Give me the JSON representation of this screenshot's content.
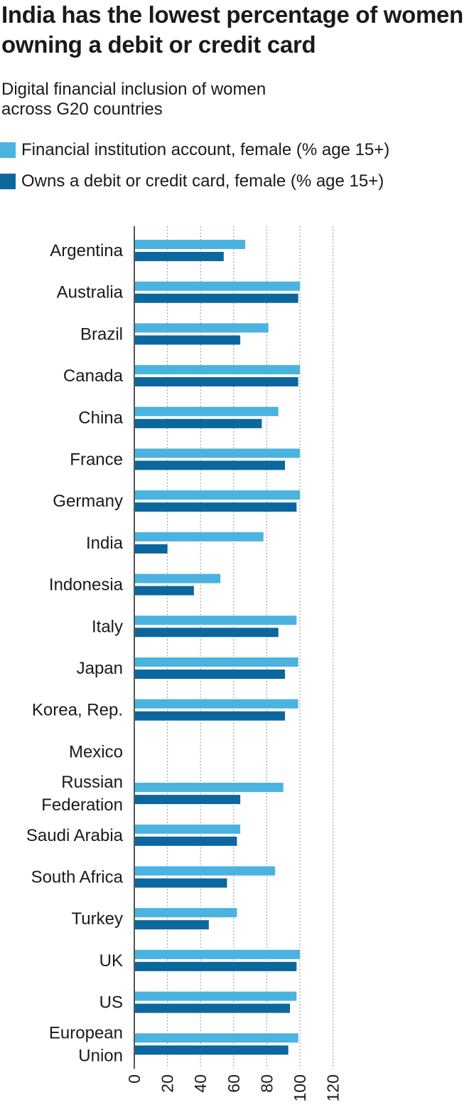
{
  "title": "India has the lowest percentage of women owning a debit or credit card",
  "subtitle": "Digital financial inclusion of women across G20 countries",
  "colors": {
    "account": "#4ab3df",
    "card": "#0b679e",
    "axis": "#555555",
    "grid": "#888888"
  },
  "chart_data": {
    "type": "bar",
    "orientation": "horizontal",
    "title": "India has the lowest percentage of women owning a debit or credit card",
    "subtitle": "Digital financial inclusion of women across G20 countries",
    "xlim": [
      0,
      120
    ],
    "ticks": [
      0,
      20,
      40,
      60,
      80,
      100,
      120
    ],
    "grid": true,
    "legend_position": "top-left",
    "categories": [
      [
        "Argentina"
      ],
      [
        "Australia"
      ],
      [
        "Brazil"
      ],
      [
        "Canada"
      ],
      [
        "China"
      ],
      [
        "France"
      ],
      [
        "Germany"
      ],
      [
        "India"
      ],
      [
        "Indonesia"
      ],
      [
        "Italy"
      ],
      [
        "Japan"
      ],
      [
        "Korea, Rep."
      ],
      [
        "Mexico"
      ],
      [
        "Russian",
        "Federation"
      ],
      [
        "Saudi Arabia"
      ],
      [
        "South Africa"
      ],
      [
        "Turkey"
      ],
      [
        "UK"
      ],
      [
        "US"
      ],
      [
        "European",
        "Union"
      ]
    ],
    "series": [
      {
        "name": "Financial institution account, female (% age 15+)",
        "color_key": "account",
        "values": [
          67,
          100,
          81,
          100,
          87,
          100,
          100,
          78,
          52,
          98,
          99,
          99,
          null,
          90,
          64,
          85,
          62,
          100,
          98,
          99
        ]
      },
      {
        "name": "Owns a debit or credit card, female (% age 15+)",
        "color_key": "card",
        "values": [
          54,
          99,
          64,
          99,
          77,
          91,
          98,
          20,
          36,
          87,
          91,
          91,
          null,
          64,
          62,
          56,
          45,
          98,
          94,
          93
        ]
      }
    ]
  }
}
